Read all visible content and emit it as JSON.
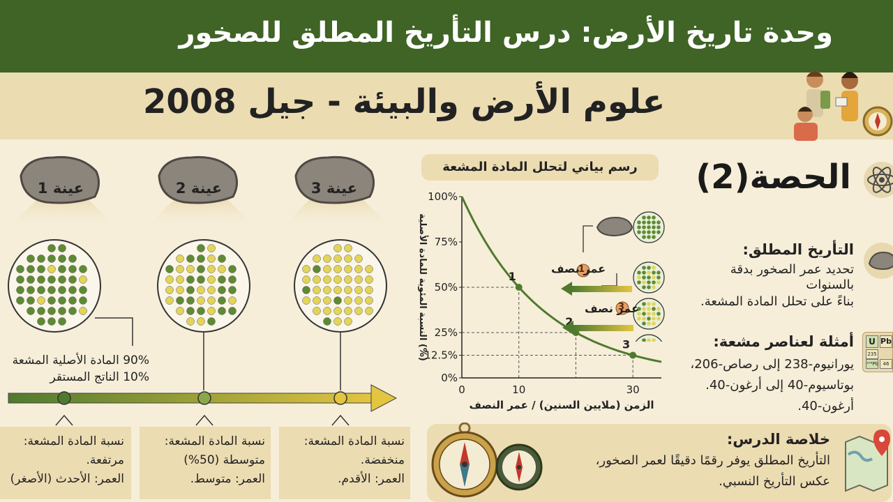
{
  "header": {
    "title": "وحدة تاريخ الأرض: درس التأريخ المطلق للصخور"
  },
  "subheader": {
    "title": "علوم الأرض والبيئة - جيل 2008"
  },
  "lesson": {
    "label": "الحصة(2)"
  },
  "samples": [
    {
      "label": "عينة 1",
      "radioactive_pct": 90,
      "bottom_lines": [
        "نسبة المادة المشعة:",
        "مرتفعة.",
        "العمر: الأحدث (الأصغر)"
      ]
    },
    {
      "label": "عينة 2",
      "radioactive_pct": 50,
      "bottom_lines": [
        "نسبة المادة المشعة:",
        "متوسطة (50%)",
        "العمر: متوسط."
      ]
    },
    {
      "label": "عينة 3",
      "radioactive_pct": 10,
      "bottom_lines": [
        "نسبة المادة المشعة:",
        "منخفضة.",
        "العمر: الأقدم."
      ]
    }
  ],
  "callout": {
    "line1": "90% المادة الأصلية المشعة",
    "line2": "10% الناتج المستقر"
  },
  "chart_data": {
    "type": "line",
    "title": "رسم بياني لتحلل المادة المشعة",
    "xlabel": "الزمن (ملايين السنين) / عمر النصف",
    "ylabel": "النسبة المئوية للمادة الأصلية (%)",
    "x_ticks": [
      "0",
      "10",
      "30"
    ],
    "y_ticks": [
      "0%",
      "12.5%",
      "25%",
      "50%",
      "75%",
      "100%"
    ],
    "x": [
      0,
      10,
      20,
      30
    ],
    "values": [
      100,
      50,
      25,
      12.5
    ],
    "markers": [
      "1",
      "2",
      "3"
    ],
    "annotations": [
      "عمر نصف",
      "عمر نصف"
    ],
    "annotation_numbers": [
      "1",
      "3"
    ]
  },
  "info": {
    "dating_title": "التأريخ المطلق:",
    "dating_text": [
      "تحديد عمر الصخور بدقة",
      "بالسنوات",
      "بناءً على تحلل المادة المشعة."
    ],
    "examples_title": "أمثلة لعناصر مشعة:",
    "examples_text": [
      "يورانيوم-238 إلى رصاص-206،",
      "بوتاسيوم-40 إلى أرغون-40.",
      "أرغون-40."
    ],
    "summary_title": "خلاصة الدرس:",
    "summary_text": [
      "التأريخ المطلق يوفر رقمًا دقيقًا لعمر الصخور،",
      "عكس التأريخ النسبي."
    ]
  },
  "periodic": {
    "cells": [
      "U",
      "Pb",
      "235",
      "²⁰⁶Pb",
      "46"
    ]
  },
  "colors": {
    "header": "#3f6425",
    "band": "#ecdcb2",
    "parent": "#5f8a35",
    "daughter": "#e3d45a",
    "curve": "#4f7a2e",
    "arrow_end": "#e3c540"
  }
}
